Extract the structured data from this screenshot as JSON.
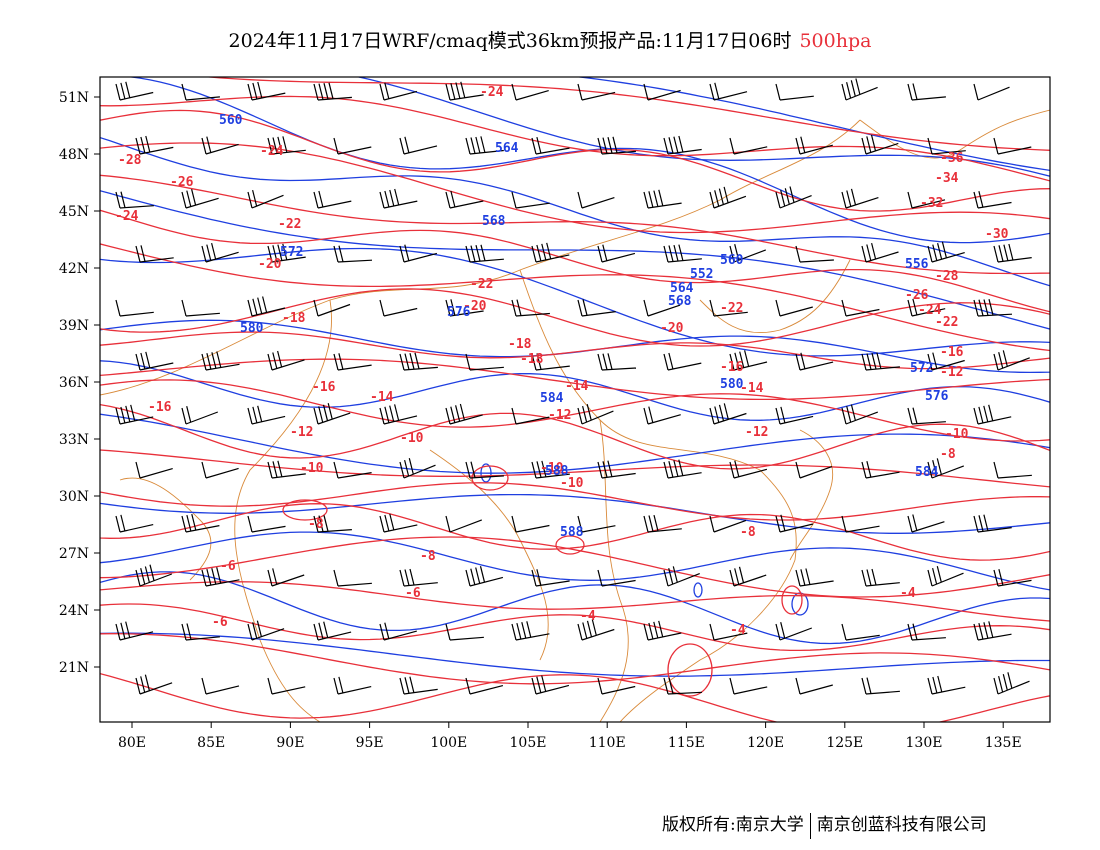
{
  "title": {
    "main": "2024年11月17日WRF/cmaq模式36km预报产品:11月17日06时",
    "level": "500hpa"
  },
  "colors": {
    "temperature": "#e8303a",
    "height": "#1f3fe0",
    "border": "#d98a3a",
    "wind": "#000000"
  },
  "map_data": {
    "type": "contour-map",
    "lon_range": [
      78,
      138
    ],
    "lat_range": [
      18,
      52
    ],
    "y_ticks": [
      "51N",
      "48N",
      "45N",
      "42N",
      "39N",
      "36N",
      "33N",
      "30N",
      "27N",
      "24N",
      "21N"
    ],
    "x_ticks": [
      "80E",
      "85E",
      "90E",
      "95E",
      "100E",
      "105E",
      "110E",
      "115E",
      "120E",
      "125E",
      "130E",
      "135E"
    ],
    "temperature_labels": [
      "-28",
      "-26",
      "-24",
      "-24",
      "-24",
      "-22",
      "-22",
      "-22",
      "-20",
      "-20",
      "-20",
      "-18",
      "-18",
      "-18",
      "-16",
      "-16",
      "-16",
      "-14",
      "-14",
      "-14",
      "-12",
      "-12",
      "-12",
      "-10",
      "-10",
      "-10",
      "-10",
      "-8",
      "-8",
      "-8",
      "-6",
      "-6",
      "-6",
      "-4",
      "-4",
      "-4",
      "-36",
      "-34",
      "-32",
      "-30",
      "-28",
      "-26",
      "-24",
      "-22",
      "-16",
      "-12",
      "-10",
      "-8"
    ],
    "height_labels": [
      "560",
      "564",
      "568",
      "572",
      "576",
      "580",
      "584",
      "588",
      "552",
      "556",
      "560",
      "564",
      "568",
      "572",
      "576",
      "580",
      "584",
      "588"
    ]
  },
  "footer": {
    "copyright": "版权所有:南京大学",
    "company": "南京创蓝科技有限公司"
  }
}
